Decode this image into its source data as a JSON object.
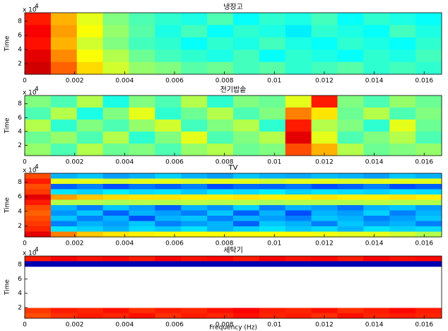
{
  "chart_data": [
    {
      "type": "heatmap",
      "title": "냉장고",
      "ylabel": "Time",
      "y_scale_label": "x 10",
      "y_scale_exponent": "4",
      "colormap": "jet",
      "clim": [
        0,
        1
      ],
      "xlim": [
        0,
        0.0167
      ],
      "ylim": [
        0.5,
        9.2
      ],
      "xticks": [
        0,
        0.002,
        0.004,
        0.006,
        0.008,
        0.01,
        0.012,
        0.014,
        0.016
      ],
      "yticks": [
        2,
        4,
        6,
        8
      ],
      "z": [
        [
          0.85,
          0.7,
          0.6,
          0.5,
          0.45,
          0.42,
          0.4,
          0.45,
          0.38,
          0.42,
          0.4,
          0.44,
          0.38,
          0.42,
          0.4,
          0.38
        ],
        [
          0.88,
          0.72,
          0.62,
          0.52,
          0.46,
          0.4,
          0.44,
          0.38,
          0.42,
          0.4,
          0.36,
          0.42,
          0.4,
          0.38,
          0.44,
          0.4
        ],
        [
          0.86,
          0.7,
          0.58,
          0.5,
          0.44,
          0.42,
          0.38,
          0.42,
          0.4,
          0.44,
          0.4,
          0.38,
          0.42,
          0.4,
          0.38,
          0.42
        ],
        [
          0.9,
          0.74,
          0.62,
          0.55,
          0.48,
          0.44,
          0.42,
          0.4,
          0.44,
          0.38,
          0.42,
          0.4,
          0.38,
          0.42,
          0.4,
          0.44
        ],
        [
          0.92,
          0.78,
          0.66,
          0.58,
          0.52,
          0.5,
          0.46,
          0.48,
          0.44,
          0.46,
          0.42,
          0.44,
          0.46,
          0.42,
          0.44,
          0.42
        ]
      ]
    },
    {
      "type": "heatmap",
      "title": "전기밥솥",
      "ylabel": "Time",
      "y_scale_label": "x 10",
      "y_scale_exponent": "4",
      "colormap": "jet",
      "clim": [
        0,
        1
      ],
      "xlim": [
        0,
        0.0167
      ],
      "ylim": [
        0.5,
        9.2
      ],
      "xticks": [
        0,
        0.002,
        0.004,
        0.006,
        0.008,
        0.01,
        0.012,
        0.014,
        0.016
      ],
      "yticks": [
        2,
        4,
        6,
        8
      ],
      "z": [
        [
          0.5,
          0.45,
          0.55,
          0.4,
          0.5,
          0.45,
          0.55,
          0.42,
          0.5,
          0.48,
          0.6,
          0.85,
          0.5,
          0.45,
          0.52,
          0.48
        ],
        [
          0.45,
          0.55,
          0.4,
          0.5,
          0.6,
          0.42,
          0.48,
          0.55,
          0.45,
          0.5,
          0.75,
          0.65,
          0.48,
          0.55,
          0.45,
          0.5
        ],
        [
          0.55,
          0.42,
          0.5,
          0.45,
          0.52,
          0.58,
          0.44,
          0.5,
          0.55,
          0.42,
          0.85,
          0.55,
          0.5,
          0.42,
          0.6,
          0.48
        ],
        [
          0.48,
          0.52,
          0.45,
          0.55,
          0.42,
          0.5,
          0.6,
          0.45,
          0.5,
          0.55,
          0.9,
          0.6,
          0.45,
          0.5,
          0.55,
          0.45
        ],
        [
          0.52,
          0.45,
          0.55,
          0.48,
          0.5,
          0.45,
          0.52,
          0.55,
          0.48,
          0.5,
          0.8,
          0.7,
          0.55,
          0.48,
          0.5,
          0.52
        ]
      ]
    },
    {
      "type": "heatmap",
      "title": "TV",
      "ylabel": "Time",
      "y_scale_label": "x 10",
      "y_scale_exponent": "4",
      "colormap": "jet",
      "clim": [
        0,
        1
      ],
      "xlim": [
        0,
        0.0167
      ],
      "ylim": [
        0.5,
        9.2
      ],
      "xticks": [
        0,
        0.002,
        0.004,
        0.006,
        0.008,
        0.01,
        0.012,
        0.014,
        0.016
      ],
      "yticks": [
        2,
        4,
        6,
        8
      ],
      "z": [
        [
          0.8,
          0.3,
          0.32,
          0.28,
          0.3,
          0.33,
          0.3,
          0.28,
          0.32,
          0.3,
          0.29,
          0.31,
          0.3,
          0.28,
          0.32,
          0.3
        ],
        [
          0.85,
          0.6,
          0.6,
          0.58,
          0.6,
          0.6,
          0.59,
          0.6,
          0.6,
          0.58,
          0.6,
          0.6,
          0.59,
          0.6,
          0.6,
          0.6
        ],
        [
          0.8,
          0.22,
          0.25,
          0.2,
          0.24,
          0.22,
          0.25,
          0.2,
          0.23,
          0.22,
          0.24,
          0.2,
          0.22,
          0.25,
          0.2,
          0.22
        ],
        [
          0.82,
          0.35,
          0.33,
          0.36,
          0.34,
          0.35,
          0.32,
          0.35,
          0.34,
          0.36,
          0.33,
          0.35,
          0.34,
          0.33,
          0.35,
          0.34
        ],
        [
          0.9,
          0.72,
          0.68,
          0.66,
          0.65,
          0.65,
          0.64,
          0.64,
          0.65,
          0.64,
          0.64,
          0.65,
          0.64,
          0.64,
          0.65,
          0.64
        ],
        [
          0.85,
          0.55,
          0.55,
          0.54,
          0.55,
          0.55,
          0.56,
          0.55,
          0.55,
          0.54,
          0.55,
          0.55,
          0.55,
          0.56,
          0.55,
          0.55
        ],
        [
          0.8,
          0.3,
          0.25,
          0.32,
          0.28,
          0.22,
          0.3,
          0.27,
          0.33,
          0.25,
          0.3,
          0.28,
          0.24,
          0.3,
          0.32,
          0.28
        ],
        [
          0.78,
          0.27,
          0.32,
          0.22,
          0.3,
          0.28,
          0.25,
          0.32,
          0.22,
          0.3,
          0.2,
          0.3,
          0.28,
          0.33,
          0.25,
          0.3
        ],
        [
          0.8,
          0.32,
          0.25,
          0.3,
          0.2,
          0.3,
          0.32,
          0.25,
          0.3,
          0.28,
          0.25,
          0.32,
          0.3,
          0.25,
          0.28,
          0.32
        ],
        [
          0.82,
          0.25,
          0.3,
          0.28,
          0.32,
          0.25,
          0.28,
          0.3,
          0.22,
          0.32,
          0.3,
          0.25,
          0.32,
          0.28,
          0.3,
          0.25
        ],
        [
          0.84,
          0.35,
          0.33,
          0.3,
          0.34,
          0.32,
          0.35,
          0.3,
          0.33,
          0.35,
          0.32,
          0.34,
          0.3,
          0.35,
          0.33,
          0.34
        ],
        [
          0.9,
          0.75,
          0.68,
          0.65,
          0.64,
          0.63,
          0.63,
          0.62,
          0.62,
          0.62,
          0.62,
          0.61,
          0.6,
          0.6,
          0.58,
          0.55
        ]
      ]
    },
    {
      "type": "heatmap",
      "title": "세탁기",
      "ylabel": "Time",
      "xlabel": "Frequency (Hz)",
      "y_scale_label": "x 10",
      "y_scale_exponent": "4",
      "colormap": "jet",
      "clim": [
        0,
        1
      ],
      "xlim": [
        0,
        0.0167
      ],
      "ylim": [
        0.5,
        9.2
      ],
      "xticks": [
        0,
        0.002,
        0.004,
        0.006,
        0.008,
        0.01,
        0.012,
        0.014,
        0.016
      ],
      "yticks": [
        2,
        4,
        6,
        8
      ],
      "z": [
        [
          0.85,
          0.88,
          0.86,
          0.87,
          0.85,
          0.88,
          0.86,
          0.87,
          0.85,
          0.88,
          0.86,
          0.87,
          0.85,
          0.88,
          0.86,
          0.87
        ],
        [
          0.05,
          0.05,
          0.05,
          0.05,
          0.05,
          0.05,
          0.05,
          0.05,
          0.05,
          0.05,
          0.05,
          0.05,
          0.05,
          0.05,
          0.05,
          0.05
        ],
        [
          null,
          null,
          null,
          null,
          null,
          null,
          null,
          null,
          null,
          null,
          null,
          null,
          null,
          null,
          null,
          null
        ],
        [
          null,
          null,
          null,
          null,
          null,
          null,
          null,
          null,
          null,
          null,
          null,
          null,
          null,
          null,
          null,
          null
        ],
        [
          null,
          null,
          null,
          null,
          null,
          null,
          null,
          null,
          null,
          null,
          null,
          null,
          null,
          null,
          null,
          null
        ],
        [
          null,
          null,
          null,
          null,
          null,
          null,
          null,
          null,
          null,
          null,
          null,
          null,
          null,
          null,
          null,
          null
        ],
        [
          null,
          null,
          null,
          null,
          null,
          null,
          null,
          null,
          null,
          null,
          null,
          null,
          null,
          null,
          null,
          null
        ],
        [
          null,
          null,
          null,
          null,
          null,
          null,
          null,
          null,
          null,
          null,
          null,
          null,
          null,
          null,
          null,
          null
        ],
        [
          null,
          null,
          null,
          null,
          null,
          null,
          null,
          null,
          null,
          null,
          null,
          null,
          null,
          null,
          null,
          null
        ],
        [
          null,
          null,
          null,
          null,
          null,
          null,
          null,
          null,
          null,
          null,
          null,
          null,
          null,
          null,
          null,
          null
        ],
        [
          0.82,
          0.85,
          0.84,
          0.86,
          0.83,
          0.85,
          0.84,
          0.86,
          0.88,
          0.85,
          0.84,
          0.86,
          0.83,
          0.85,
          0.87,
          0.85
        ],
        [
          0.8,
          0.83,
          0.85,
          0.84,
          0.86,
          0.83,
          0.85,
          0.84,
          0.86,
          0.84,
          0.85,
          0.83,
          0.86,
          0.84,
          0.85,
          0.84
        ]
      ]
    }
  ]
}
